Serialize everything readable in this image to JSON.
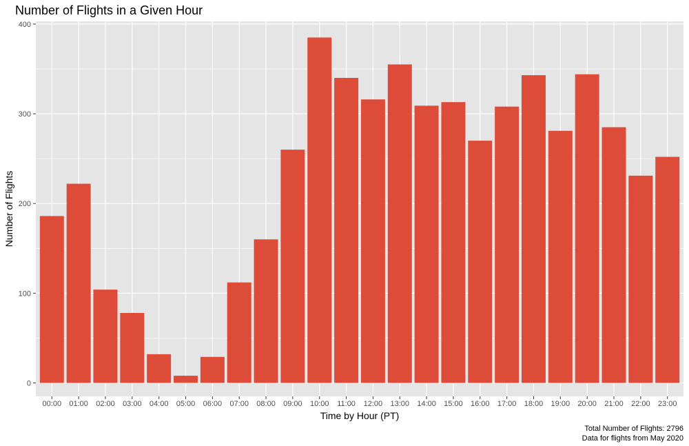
{
  "colors": {
    "panel_background": "#e5e5e5",
    "grid_line": "#ffffff",
    "bar_fill": "#dc4c38",
    "tick_mark": "#333333"
  },
  "chart_data": {
    "type": "bar",
    "title": "Number of Flights in a Given Hour",
    "xlabel": "Time by Hour (PT)",
    "ylabel": "Number of Flights",
    "categories": [
      "00:00",
      "01:00",
      "02:00",
      "03:00",
      "04:00",
      "05:00",
      "06:00",
      "07:00",
      "08:00",
      "09:00",
      "10:00",
      "11:00",
      "12:00",
      "13:00",
      "14:00",
      "15:00",
      "16:00",
      "17:00",
      "18:00",
      "19:00",
      "20:00",
      "21:00",
      "22:00",
      "23:00"
    ],
    "values": [
      186,
      222,
      104,
      78,
      32,
      8,
      29,
      112,
      160,
      260,
      385,
      340,
      316,
      355,
      309,
      313,
      270,
      308,
      343,
      281,
      344,
      285,
      231,
      252
    ],
    "yticks": [
      0,
      100,
      200,
      300,
      400
    ],
    "ylim": [
      -15,
      403
    ],
    "grid": true,
    "legend": "none",
    "caption": [
      "Total Number of Flights: 2796",
      "Data for flights from May 2020"
    ]
  }
}
